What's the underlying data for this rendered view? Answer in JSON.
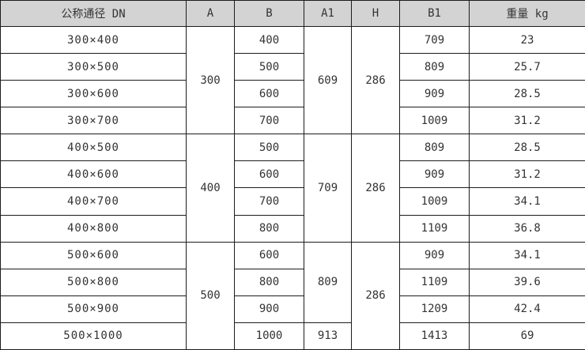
{
  "colors": {
    "header_bg": "#d3d3d3",
    "border": "#1c1c1c",
    "text": "#333333",
    "row_bg": "#ffffff"
  },
  "table": {
    "headers": [
      "公称通径 DN",
      "A",
      "B",
      "A1",
      "H",
      "B1",
      "重量 kg"
    ],
    "groups": [
      {
        "a": "300",
        "h": "286",
        "a1_spans": [
          {
            "value": "609",
            "span": 4
          }
        ],
        "rows": [
          {
            "dn": "300×400",
            "b": "400",
            "b1": "709",
            "weight": "23"
          },
          {
            "dn": "300×500",
            "b": "500",
            "b1": "809",
            "weight": "25.7"
          },
          {
            "dn": "300×600",
            "b": "600",
            "b1": "909",
            "weight": "28.5"
          },
          {
            "dn": "300×700",
            "b": "700",
            "b1": "1009",
            "weight": "31.2"
          }
        ]
      },
      {
        "a": "400",
        "h": "286",
        "a1_spans": [
          {
            "value": "709",
            "span": 4
          }
        ],
        "rows": [
          {
            "dn": "400×500",
            "b": "500",
            "b1": "809",
            "weight": "28.5"
          },
          {
            "dn": "400×600",
            "b": "600",
            "b1": "909",
            "weight": "31.2"
          },
          {
            "dn": "400×700",
            "b": "700",
            "b1": "1009",
            "weight": "34.1"
          },
          {
            "dn": "400×800",
            "b": "800",
            "b1": "1109",
            "weight": "36.8"
          }
        ]
      },
      {
        "a": "500",
        "h": "286",
        "a1_spans": [
          {
            "value": "809",
            "span": 3
          },
          {
            "value": "913",
            "span": 1
          }
        ],
        "rows": [
          {
            "dn": "500×600",
            "b": "600",
            "b1": "909",
            "weight": "34.1"
          },
          {
            "dn": "500×800",
            "b": "800",
            "b1": "1109",
            "weight": "39.6"
          },
          {
            "dn": "500×900",
            "b": "900",
            "b1": "1209",
            "weight": "42.4"
          },
          {
            "dn": "500×1000",
            "b": "1000",
            "b1": "1413",
            "weight": "69"
          }
        ]
      }
    ]
  }
}
